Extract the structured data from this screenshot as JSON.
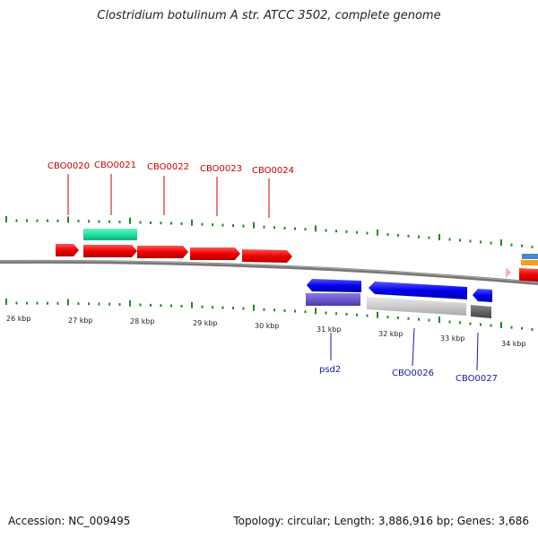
{
  "title": "Clostridium botulinum A str. ATCC 3502, complete genome",
  "footer": {
    "accession": "Accession: NC_009495",
    "summary": "Topology: circular; Length: 3,886,916 bp; Genes: 3,686"
  },
  "map": {
    "kbp_labels": [
      "26 kbp",
      "27 kbp",
      "28 kbp",
      "29 kbp",
      "30 kbp",
      "31 kbp",
      "32 kbp",
      "33 kbp",
      "34 kbp"
    ],
    "top_gene_labels": [
      "CBO0020",
      "CBO0021",
      "CBO0022",
      "CBO0023",
      "CBO0024"
    ],
    "bottom_gene_labels": [
      "psd2",
      "CBO0026",
      "CBO0027"
    ],
    "colors": {
      "forward_gene": "#ee0000",
      "reverse_gene": "#0000ee",
      "rna_feature": "#22e0a0",
      "reverse_feature": "#6a5acd",
      "pseudo_feature_light": "#cccccc",
      "pseudo_feature_dark": "#666666",
      "tick": "#228b22",
      "backbone": "#777777",
      "top_label": "#cc0000",
      "bottom_label": "#1a1aa6"
    }
  }
}
